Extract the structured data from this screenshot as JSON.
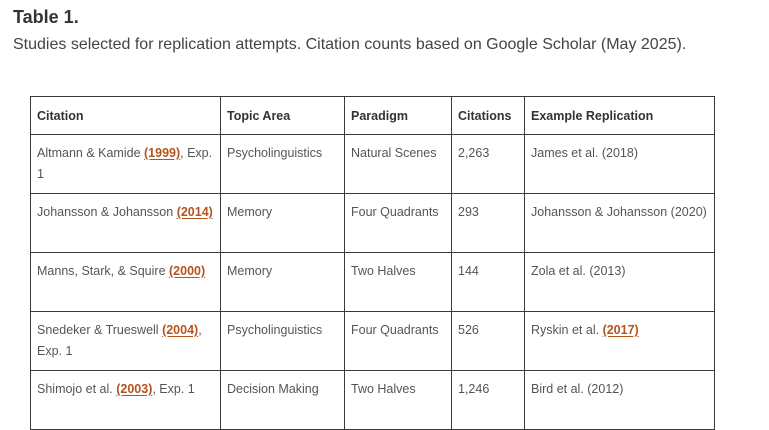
{
  "caption": {
    "label": "Table 1.",
    "description": "Studies selected for replication attempts. Citation counts based on Google Scholar (May 2025)."
  },
  "table": {
    "headers": [
      "Citation",
      "Topic Area",
      "Paradigm",
      "Citations",
      "Example Replication"
    ],
    "rows": [
      {
        "citation_authors": "Altmann & Kamide ",
        "citation_year": "(1999)",
        "citation_suffix": ", Exp. 1",
        "topic": "Psycholinguistics",
        "paradigm": "Natural Scenes",
        "citations": "2,263",
        "replication_text": "James et al. (2018)",
        "replication_year": ""
      },
      {
        "citation_authors": "Johansson & Johansson ",
        "citation_year": "(2014)",
        "citation_suffix": "",
        "topic": "Memory",
        "paradigm": "Four Quadrants",
        "citations": "293",
        "replication_text": "Johansson & Johansson (2020)",
        "replication_year": ""
      },
      {
        "citation_authors": "Manns, Stark, & Squire ",
        "citation_year": "(2000)",
        "citation_suffix": "",
        "topic": "Memory",
        "paradigm": "Two Halves",
        "citations": "144",
        "replication_text": "Zola et al. (2013)",
        "replication_year": ""
      },
      {
        "citation_authors": "Snedeker & Trueswell ",
        "citation_year": "(2004)",
        "citation_suffix": ", Exp. 1",
        "topic": "Psycholinguistics",
        "paradigm": "Four Quadrants",
        "citations": "526",
        "replication_text": "Ryskin et al. ",
        "replication_year": "(2017)"
      },
      {
        "citation_authors": "Shimojo et al. ",
        "citation_year": "(2003)",
        "citation_suffix": ", Exp. 1",
        "topic": "Decision Making",
        "paradigm": "Two Halves",
        "citations": "1,246",
        "replication_text": "Bird et al. (2012)",
        "replication_year": ""
      }
    ]
  },
  "colors": {
    "link": "#b5541f",
    "text": "#555555",
    "border": "#3a3a3a"
  }
}
